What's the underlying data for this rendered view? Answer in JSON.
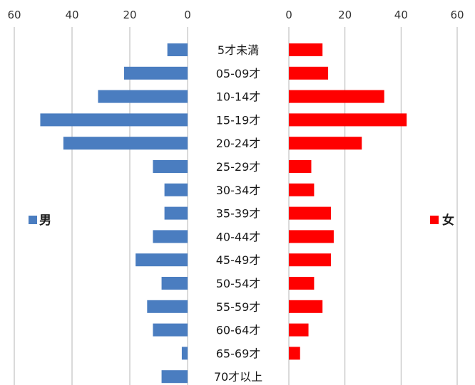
{
  "chart_data": {
    "type": "bar",
    "orientation": "horizontal",
    "layout": "population-pyramid",
    "categories": [
      "5才未満",
      "05-09才",
      "10-14才",
      "15-19才",
      "20-24才",
      "25-29才",
      "30-34才",
      "35-39才",
      "40-44才",
      "45-49才",
      "50-54才",
      "55-59才",
      "60-64才",
      "65-69才",
      "70才以上"
    ],
    "series": [
      {
        "name": "男",
        "color": "#4a7dc0",
        "values": [
          7,
          22,
          31,
          51,
          43,
          12,
          8,
          8,
          12,
          18,
          9,
          14,
          12,
          2,
          9
        ]
      },
      {
        "name": "女",
        "color": "#ff0000",
        "values": [
          12,
          14,
          34,
          42,
          26,
          8,
          9,
          15,
          16,
          15,
          9,
          12,
          7,
          4,
          0
        ]
      }
    ],
    "left_axis": {
      "ticks": [
        "60",
        "40",
        "20",
        "0"
      ],
      "range": [
        0,
        60
      ],
      "direction": "reversed"
    },
    "right_axis": {
      "ticks": [
        "0",
        "20",
        "40",
        "60"
      ],
      "range": [
        0,
        60
      ]
    },
    "grid": "vertical",
    "legend": {
      "male_position": "left",
      "female_position": "right"
    }
  }
}
